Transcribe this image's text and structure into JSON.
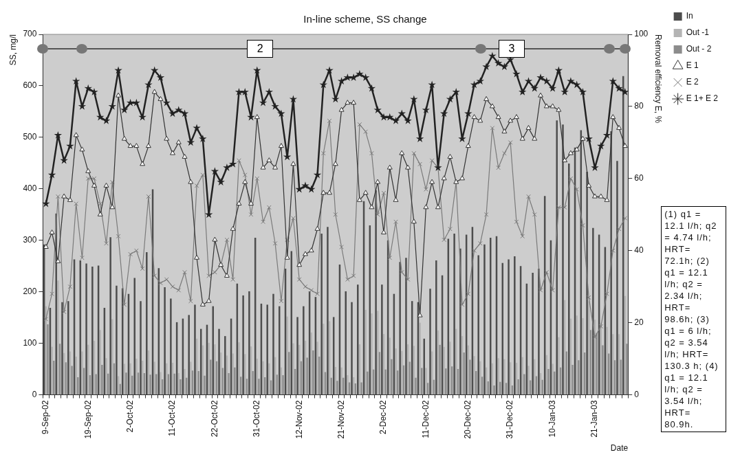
{
  "chart_data": {
    "type": "bar",
    "title": "In-line scheme, SS change",
    "xlabel": "Date",
    "ylabel": "SS, mg/l",
    "y2label": "Removal efficiency E, %",
    "categories": [
      "9-Sep-02",
      null,
      null,
      null,
      null,
      null,
      null,
      "19-Sep-02",
      null,
      null,
      null,
      null,
      null,
      null,
      "2-Oct-02",
      null,
      null,
      null,
      null,
      null,
      null,
      "11-Oct-02",
      null,
      null,
      null,
      null,
      null,
      null,
      "22-Oct-02",
      null,
      null,
      null,
      null,
      null,
      null,
      "31-Oct-02",
      null,
      null,
      null,
      null,
      null,
      null,
      "12-Nov-02",
      null,
      null,
      null,
      null,
      null,
      null,
      "21-Nov-02",
      null,
      null,
      null,
      null,
      null,
      null,
      "2-Dec-02",
      null,
      null,
      null,
      null,
      null,
      null,
      "11-Dec-02",
      null,
      null,
      null,
      null,
      null,
      null,
      "20-Dec-02",
      null,
      null,
      null,
      null,
      null,
      null,
      "31-Dec-02",
      null,
      null,
      null,
      null,
      null,
      null,
      "10-Jan-03",
      null,
      null,
      null,
      null,
      null,
      null,
      "21-Jan-03",
      null,
      null,
      null,
      null,
      null
    ],
    "series": [
      {
        "name": "In",
        "color": "#4d4d4d",
        "values": [
          292,
          169,
          352,
          180,
          182,
          263,
          261,
          255,
          249,
          251,
          169,
          306,
          212,
          207,
          196,
          227,
          182,
          277,
          399,
          246,
          209,
          187,
          141,
          148,
          155,
          175,
          128,
          136,
          172,
          128,
          114,
          148,
          216,
          193,
          201,
          305,
          177,
          175,
          196,
          172,
          245,
          279,
          151,
          172,
          201,
          190,
          313,
          326,
          151,
          253,
          201,
          180,
          214,
          376,
          329,
          397,
          214,
          300,
          196,
          258,
          266,
          182,
          180,
          109,
          206,
          261,
          232,
          303,
          313,
          284,
          311,
          326,
          271,
          292,
          305,
          308,
          256,
          263,
          269,
          250,
          216,
          237,
          245,
          386,
          300,
          533,
          525,
          449,
          480,
          514,
          433,
          324,
          311,
          287,
          512,
          454,
          619
        ]
      },
      {
        "name": "Out -1",
        "color": "#b4b4b4",
        "values": [
          172,
          93,
          222,
          81,
          84,
          74,
          84,
          97,
          105,
          126,
          71,
          147,
          36,
          60,
          61,
          70,
          66,
          86,
          64,
          44,
          61,
          62,
          42,
          50,
          64,
          109,
          96,
          101,
          98,
          82,
          76,
          80,
          102,
          79,
          94,
          70,
          65,
          61,
          73,
          53,
          152,
          100,
          97,
          105,
          121,
          103,
          138,
          143,
          54,
          53,
          38,
          34,
          98,
          165,
          158,
          163,
          118,
          111,
          90,
          85,
          98,
          95,
          140,
          52,
          84,
          125,
          93,
          103,
          128,
          114,
          96,
          75,
          65,
          53,
          61,
          71,
          69,
          63,
          62,
          73,
          56,
          69,
          42,
          77,
          60,
          112,
          184,
          148,
          154,
          149,
          182,
          146,
          140,
          132,
          118,
          118,
          192
        ]
      },
      {
        "name": "Out - 2",
        "color": "#8c8c8c",
        "values": [
          137,
          66,
          99,
          63,
          56,
          34,
          52,
          38,
          40,
          58,
          41,
          61,
          21,
          43,
          37,
          43,
          42,
          39,
          40,
          30,
          40,
          41,
          30,
          33,
          47,
          46,
          37,
          68,
          65,
          52,
          42,
          53,
          35,
          31,
          46,
          31,
          34,
          28,
          39,
          38,
          83,
          50,
          65,
          72,
          86,
          74,
          44,
          33,
          27,
          33,
          24,
          22,
          24,
          45,
          49,
          83,
          49,
          69,
          47,
          57,
          64,
          33,
          52,
          23,
          29,
          97,
          51,
          55,
          50,
          82,
          68,
          46,
          35,
          26,
          18,
          25,
          23,
          18,
          30,
          40,
          28,
          36,
          29,
          50,
          45,
          53,
          84,
          58,
          67,
          82,
          126,
          120,
          96,
          80,
          67,
          68,
          99
        ]
      },
      {
        "name": "E 1",
        "type": "line",
        "axis": "y2",
        "marker": "triangle",
        "color": "#333333",
        "values": [
          41,
          45,
          37,
          55,
          54,
          72,
          68,
          62,
          58,
          50,
          58,
          52,
          83,
          71,
          69,
          69,
          64,
          69,
          84,
          82,
          71,
          67,
          70,
          66,
          59,
          38,
          25,
          26,
          43,
          36,
          33,
          46,
          53,
          59,
          53,
          77,
          63,
          65,
          63,
          69,
          38,
          64,
          36,
          39,
          40,
          46,
          56,
          56,
          64,
          79,
          81,
          81,
          54,
          56,
          52,
          59,
          45,
          63,
          54,
          67,
          63,
          48,
          22,
          52,
          59,
          52,
          60,
          66,
          59,
          60,
          69,
          77,
          76,
          82,
          80,
          77,
          73,
          76,
          77,
          71,
          74,
          71,
          83,
          80,
          80,
          79,
          65,
          67,
          68,
          71,
          58,
          55,
          55,
          54,
          77,
          74,
          69
        ]
      },
      {
        "name": "E 2",
        "type": "line",
        "axis": "y2",
        "marker": "cross",
        "color": "#7a7a7a",
        "values": [
          21,
          28,
          55,
          23,
          30,
          53,
          38,
          60,
          60,
          53,
          42,
          59,
          44,
          25,
          39,
          40,
          35,
          55,
          33,
          31,
          32,
          30,
          29,
          34,
          26,
          58,
          61,
          33,
          34,
          36,
          43,
          32,
          65,
          61,
          50,
          60,
          48,
          52,
          42,
          26,
          43,
          49,
          32,
          30,
          29,
          28,
          67,
          76,
          50,
          41,
          32,
          33,
          75,
          73,
          67,
          50,
          56,
          38,
          48,
          34,
          32,
          67,
          64,
          57,
          65,
          63,
          43,
          46,
          59,
          25,
          28,
          40,
          42,
          50,
          74,
          63,
          67,
          70,
          48,
          44,
          55,
          50,
          29,
          34,
          29,
          52,
          52,
          60,
          57,
          47,
          27,
          16,
          19,
          28,
          40,
          46,
          49
        ]
      },
      {
        "name": "E 1+ E 2",
        "type": "line",
        "axis": "y2",
        "marker": "star",
        "color": "#222222",
        "values": [
          53,
          61,
          72,
          65,
          69,
          87,
          80,
          85,
          84,
          77,
          76,
          80,
          90,
          79,
          81,
          81,
          77,
          86,
          90,
          88,
          81,
          78,
          79,
          78,
          70,
          74,
          71,
          50,
          62,
          59,
          63,
          64,
          84,
          84,
          77,
          90,
          81,
          84,
          80,
          78,
          66,
          82,
          57,
          58,
          57,
          61,
          86,
          90,
          82,
          87,
          88,
          88,
          89,
          88,
          85,
          79,
          77,
          77,
          76,
          78,
          76,
          82,
          71,
          79,
          86,
          63,
          78,
          82,
          84,
          71,
          78,
          86,
          87,
          91,
          94,
          92,
          91,
          93,
          89,
          84,
          87,
          85,
          88,
          87,
          85,
          90,
          84,
          87,
          86,
          84,
          71,
          63,
          69,
          72,
          87,
          85,
          84
        ]
      }
    ],
    "ylim": [
      0,
      700
    ],
    "yticks": [
      0,
      100,
      200,
      300,
      400,
      500,
      600,
      700
    ],
    "y2lim": [
      0,
      100
    ],
    "y2ticks": [
      0,
      20,
      40,
      60,
      80,
      100
    ],
    "grid": false,
    "legend": "right",
    "ref_lines": [
      {
        "axis": "y2",
        "value": 96,
        "color": "#555555"
      }
    ],
    "annotations": [
      "2",
      "3",
      "(1) q1 = 12.1 l/h; q2 = 4.74 l/h; HRT= 72.1h; (2) q1 = 12.1 l/h; q2 = 2.34 l/h; HRT= 98.6h; (3) q1 = 6 l/h; q2 = 3.54 l/h; HRT= 130.3 h; (4) q1 = 12.1 l/h; q2 = 3.54 l/h; HRT= 80.9h."
    ]
  }
}
